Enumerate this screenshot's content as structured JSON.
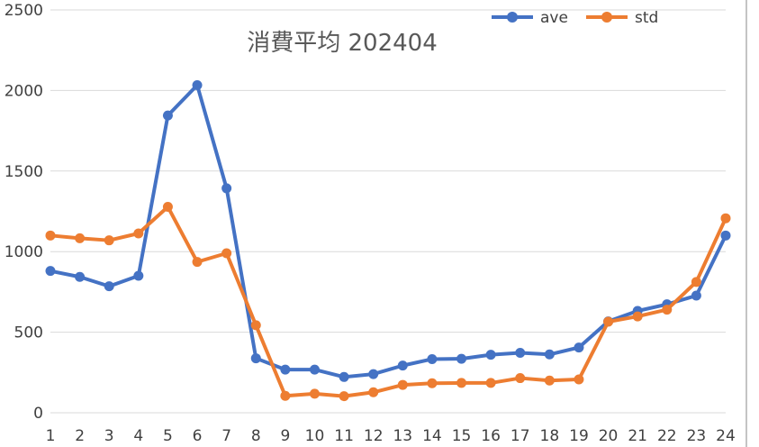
{
  "chart_data": {
    "type": "line",
    "title": "消費平均 202404",
    "xlabel": "",
    "ylabel": "",
    "x": [
      "1",
      "2",
      "3",
      "4",
      "5",
      "6",
      "7",
      "8",
      "9",
      "10",
      "11",
      "12",
      "13",
      "14",
      "15",
      "16",
      "17",
      "18",
      "19",
      "20",
      "21",
      "22",
      "23",
      "24"
    ],
    "ylim": [
      0,
      2500
    ],
    "yticks": [
      0,
      500,
      1000,
      1500,
      2000,
      2500
    ],
    "grid": true,
    "legend_position": "top-right",
    "series": [
      {
        "name": "ave",
        "color": "#4472c4",
        "values": [
          880,
          843,
          785,
          850,
          1845,
          2033,
          1393,
          338,
          268,
          268,
          222,
          240,
          293,
          333,
          335,
          360,
          372,
          362,
          405,
          567,
          632,
          673,
          727,
          1100
        ]
      },
      {
        "name": "std",
        "color": "#ed7d31",
        "values": [
          1100,
          1083,
          1070,
          1113,
          1278,
          936,
          990,
          543,
          105,
          118,
          103,
          127,
          173,
          183,
          185,
          185,
          215,
          200,
          207,
          565,
          598,
          640,
          812,
          1207
        ]
      }
    ]
  }
}
